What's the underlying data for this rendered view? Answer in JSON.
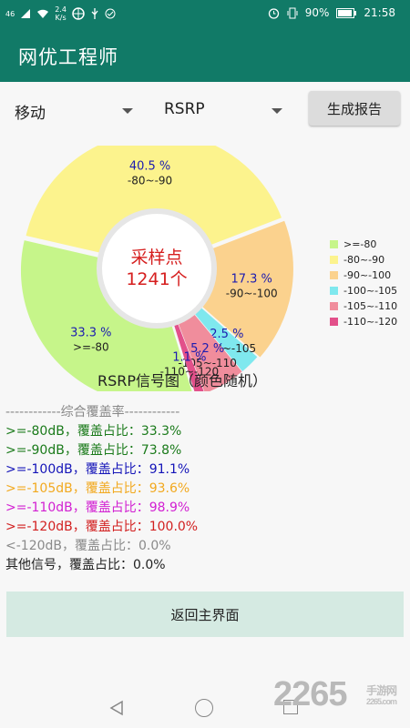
{
  "status": {
    "signal": "46",
    "speed": "2.4",
    "speed_unit": "K/s",
    "battery": "90%",
    "time": "21:58"
  },
  "app": {
    "title": "网优工程师"
  },
  "controls": {
    "operator": "移动",
    "metric": "RSRP",
    "report_button": "生成报告"
  },
  "chart_data": {
    "type": "pie",
    "title": "RSRP信号图（颜色随机）",
    "center_label": "采样点",
    "center_count": "1241个",
    "legend_position": "right",
    "slices": [
      {
        "name": ">=-80",
        "value": 33.3,
        "label": "33.3 %",
        "color": "#c6f58a"
      },
      {
        "name": "-80~-90",
        "value": 40.5,
        "label": "40.5 %",
        "color": "#fcf38d"
      },
      {
        "name": "-90~-100",
        "value": 17.3,
        "label": "17.3 %",
        "color": "#fbd28e"
      },
      {
        "name": "-100~-105",
        "value": 2.5,
        "label": "2.5 %",
        "color": "#7fe8ee"
      },
      {
        "name": "-105~-110",
        "value": 5.2,
        "label": "5.2 %",
        "color": "#f08d9c"
      },
      {
        "name": "-110~-120",
        "value": 1.1,
        "label": "1.1 %",
        "color": "#e2508a"
      }
    ]
  },
  "coverage": {
    "heading": "------------综合覆盖率------------",
    "lines": [
      {
        "text": ">=-80dB，覆盖占比：33.3%",
        "color": "#1a7a1a"
      },
      {
        "text": ">=-90dB，覆盖占比：73.8%",
        "color": "#1a7a1a"
      },
      {
        "text": ">=-100dB，覆盖占比：91.1%",
        "color": "#1414b8"
      },
      {
        "text": ">=-105dB，覆盖占比：93.6%",
        "color": "#f2a91f"
      },
      {
        "text": ">=-110dB，覆盖占比：98.9%",
        "color": "#d21fd2"
      },
      {
        "text": ">=-120dB，覆盖占比：100.0%",
        "color": "#d21f1f"
      },
      {
        "text": "<-120dB，覆盖占比：0.0%",
        "color": "#8a8a8a"
      },
      {
        "text": "其他信号，覆盖占比：0.0%",
        "color": "#222222"
      }
    ]
  },
  "back_button": "返回主界面",
  "watermark": {
    "brand": "2265",
    "sub": "手游网",
    "url": "2265.com"
  }
}
